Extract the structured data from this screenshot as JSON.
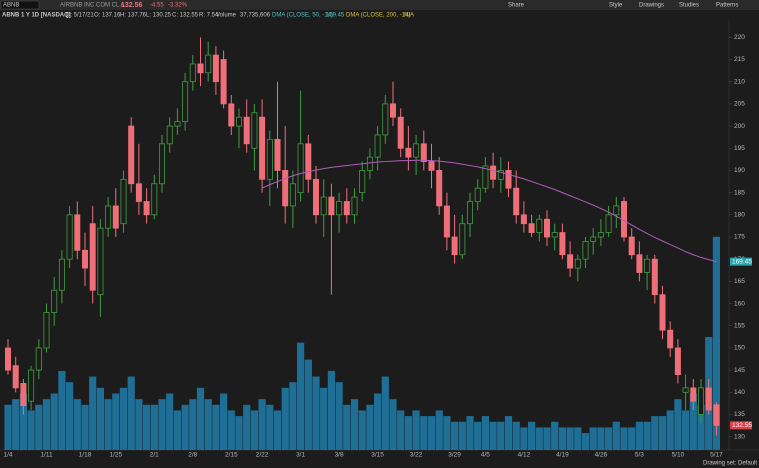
{
  "toolbar": {
    "symbol": "ABNB",
    "company": "AIRBNB INC COM CL A",
    "price": "132.56",
    "change": "-4.55",
    "change_pct": "-3.32%",
    "buttons": [
      "Share",
      "Style",
      "Drawings",
      "Studies",
      "Patterns"
    ]
  },
  "legend_bar": {
    "symbol_title": "ABNB 1 Y 1D [NASDAQ]",
    "date": "D: 5/17/21",
    "open": "O: 137.16",
    "high": "H: 137.76",
    "low": "L: 130.25",
    "close": "C: 132.55",
    "range": "R: 7.54",
    "volume_label": "Volume",
    "volume": "37,735,606",
    "study1": "DMA (CLOSE, 50, -14)",
    "study1_value": "169.45",
    "study2": "DMA (CLOSE, 200, -14)",
    "study2_value": "N/A"
  },
  "footer": "Drawing set: Default",
  "chart_data": {
    "type": "candlestick",
    "categories": [
      "1/4",
      null,
      null,
      null,
      null,
      "1/11",
      null,
      null,
      null,
      null,
      "1/18",
      null,
      null,
      null,
      "1/25",
      null,
      null,
      null,
      null,
      "2/1",
      null,
      null,
      null,
      null,
      "2/8",
      null,
      null,
      null,
      null,
      "2/15",
      null,
      null,
      null,
      "2/22",
      null,
      null,
      null,
      null,
      "3/1",
      null,
      null,
      null,
      null,
      "3/8",
      null,
      null,
      null,
      null,
      "3/15",
      null,
      null,
      null,
      null,
      "3/22",
      null,
      null,
      null,
      null,
      "3/29",
      null,
      null,
      null,
      "4/5",
      null,
      null,
      null,
      null,
      "4/12",
      null,
      null,
      null,
      null,
      "4/19",
      null,
      null,
      null,
      null,
      "4/26",
      null,
      null,
      null,
      null,
      "5/3",
      null,
      null,
      null,
      null,
      "5/10",
      null,
      null,
      null,
      null,
      "5/17"
    ],
    "open": [
      150,
      146,
      142,
      138,
      145,
      150,
      158,
      163,
      170,
      180,
      172,
      178,
      162,
      177,
      182,
      178,
      200,
      187,
      183,
      180,
      187,
      196,
      200,
      201,
      210,
      214,
      212,
      216,
      215,
      205,
      200,
      202,
      195,
      202,
      188,
      197,
      190,
      182,
      185,
      196,
      188,
      180,
      184,
      180,
      183,
      180,
      185,
      190,
      193,
      198,
      205,
      202,
      195,
      193,
      196,
      192,
      190,
      182,
      175,
      171,
      178,
      183,
      186,
      191,
      188,
      190,
      186,
      180,
      178,
      176,
      179,
      175,
      176,
      171,
      168,
      170,
      174,
      175,
      176,
      180,
      183,
      175,
      171,
      167,
      170,
      162,
      154,
      150,
      140,
      141,
      135,
      141,
      137.16
    ],
    "high": [
      152,
      148,
      143,
      146,
      152,
      160,
      166,
      172,
      182,
      183,
      176,
      182,
      179,
      184,
      186,
      190,
      202,
      196,
      186,
      189,
      198,
      202,
      204,
      212,
      216,
      220,
      219,
      218,
      217,
      207,
      204,
      206,
      205,
      206,
      199,
      210,
      200,
      190,
      208,
      198,
      191,
      188,
      187,
      185,
      186,
      186,
      192,
      195,
      200,
      207,
      210,
      204,
      200,
      198,
      199,
      196,
      193,
      185,
      180,
      180,
      185,
      188,
      193,
      194,
      193,
      192,
      190,
      183,
      180,
      180,
      181,
      178,
      178,
      174,
      171,
      175,
      177,
      179,
      182,
      184,
      184,
      177,
      174,
      171,
      171,
      164,
      156,
      152,
      144,
      143,
      143,
      143,
      137.76
    ],
    "low": [
      144,
      140,
      135,
      136,
      143,
      149,
      155,
      160,
      168,
      170,
      164,
      160,
      157,
      175,
      175,
      176,
      185,
      180,
      178,
      179,
      185,
      194,
      198,
      199,
      208,
      209,
      210,
      207,
      204,
      198,
      195,
      194,
      190,
      185,
      182,
      186,
      178,
      177,
      183,
      185,
      178,
      175,
      162,
      176,
      178,
      178,
      183,
      188,
      190,
      196,
      200,
      193,
      190,
      189,
      190,
      186,
      180,
      172,
      169,
      170,
      175,
      181,
      185,
      186,
      185,
      184,
      178,
      176,
      175,
      174,
      173,
      172,
      170,
      166,
      165,
      168,
      171,
      173,
      175,
      177,
      174,
      170,
      165,
      163,
      160,
      152,
      148,
      142,
      136,
      136,
      133,
      135,
      130.25
    ],
    "close": [
      145,
      141,
      137,
      145,
      150,
      158,
      163,
      170,
      180,
      172,
      168,
      163,
      177,
      182,
      177,
      188,
      187,
      183,
      180,
      187,
      196,
      200,
      201,
      210,
      214,
      212,
      216,
      210,
      205,
      200,
      202,
      196,
      203,
      188,
      197,
      190,
      182,
      187,
      196,
      188,
      180,
      184,
      180,
      183,
      180,
      184,
      190,
      193,
      198,
      205,
      202,
      195,
      193,
      196,
      192,
      190,
      182,
      175,
      171,
      178,
      183,
      186,
      191,
      188,
      190,
      186,
      180,
      178,
      176,
      179,
      175,
      176,
      171,
      168,
      170,
      174,
      175,
      176,
      180,
      182,
      175,
      171,
      167,
      170,
      162,
      154,
      150,
      144,
      141,
      138,
      141,
      136,
      132.55
    ],
    "up_color": "#3f9e3f",
    "down_color": "#ef6f79",
    "volume": {
      "color": "#1f6e96",
      "values": [
        8,
        9,
        10,
        7,
        8,
        9,
        10,
        14,
        12,
        9,
        8,
        13,
        11,
        9,
        10,
        11,
        13,
        9,
        8,
        8,
        9,
        10,
        7,
        8,
        9,
        11,
        9,
        8,
        10,
        7,
        6,
        8,
        7,
        9,
        8,
        7,
        11,
        12,
        19,
        16,
        13,
        11,
        14,
        12,
        8,
        9,
        7,
        8,
        10,
        13,
        9,
        7,
        6,
        7,
        6,
        6,
        7,
        6,
        5,
        5,
        6,
        5,
        6,
        5,
        5,
        6,
        5,
        4,
        5,
        4,
        4,
        5,
        4,
        4,
        4,
        3,
        4,
        4,
        4,
        5,
        4,
        4,
        5,
        5,
        6,
        6,
        7,
        9,
        7,
        10,
        8,
        20,
        37.735606
      ]
    },
    "dma": {
      "color": "#b25cbb",
      "values": [
        null,
        null,
        null,
        null,
        null,
        null,
        null,
        null,
        null,
        null,
        null,
        null,
        null,
        null,
        null,
        null,
        null,
        null,
        null,
        null,
        null,
        null,
        null,
        null,
        null,
        null,
        null,
        null,
        null,
        null,
        null,
        null,
        null,
        186,
        186.8,
        187.5,
        188.2,
        188.8,
        189.3,
        189.7,
        190.1,
        190.4,
        190.7,
        190.9,
        191.1,
        191.3,
        191.5,
        191.7,
        191.9,
        192,
        192.1,
        192.2,
        192.2,
        192.3,
        192.3,
        192.2,
        192.1,
        191.9,
        191.7,
        191.4,
        191.1,
        190.8,
        190.4,
        190,
        189.6,
        189.1,
        188.6,
        188.1,
        187.5,
        186.9,
        186.3,
        185.7,
        185,
        184.3,
        183.6,
        182.9,
        182.2,
        181.4,
        180.6,
        179.7,
        178.7,
        177.7,
        176.7,
        175.8,
        174.9,
        174.1,
        173.3,
        172.5,
        171.7,
        171,
        170.4,
        169.9,
        169.45
      ]
    },
    "price_marker": "132.55",
    "dma_marker": "169.45",
    "ylim": [
      127,
      223
    ],
    "yticks": [
      130,
      135,
      140,
      145,
      150,
      155,
      160,
      165,
      170,
      175,
      180,
      185,
      190,
      195,
      200,
      205,
      210,
      215,
      220
    ]
  }
}
